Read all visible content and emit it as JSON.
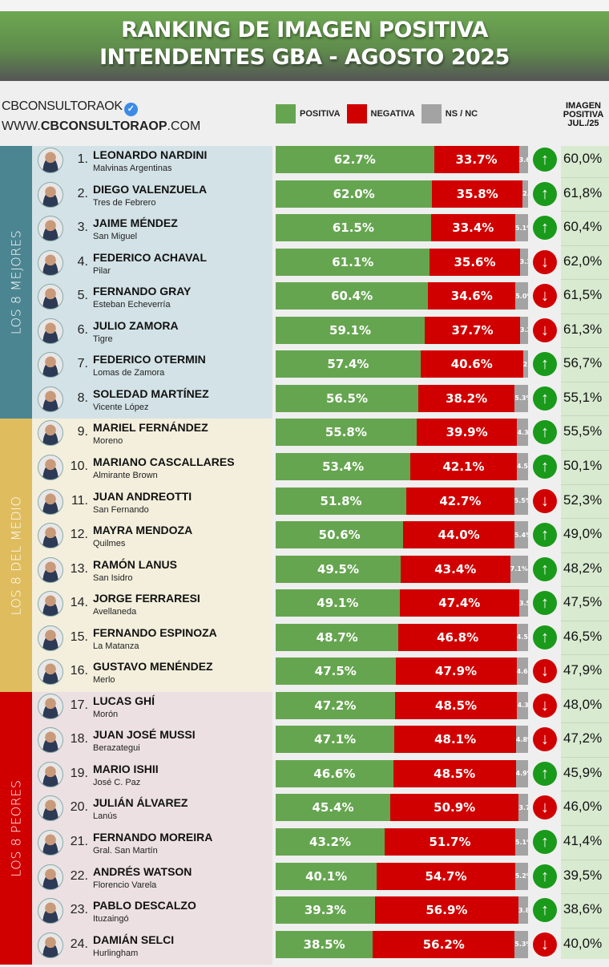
{
  "header": {
    "title_line1": "RANKING DE IMAGEN POSITIVA",
    "title_line2": "INTENDENTES GBA - AGOSTO 2025"
  },
  "brand": {
    "handle": "CBCONSULTORAOK",
    "verified_icon": "verified-badge-icon",
    "url_prefix": "WWW.",
    "url_bold": "CBCONSULTORAOP",
    "url_suffix": ".COM"
  },
  "legend": {
    "positiva": {
      "label": "POSITIVA",
      "color": "#66a550"
    },
    "negativa": {
      "label": "NEGATIVA",
      "color": "#d10000"
    },
    "nsnc": {
      "label": "NS / NC",
      "color": "#a3a3a3"
    }
  },
  "jul_header": {
    "line1": "IMAGEN",
    "line2": "POSITIVA",
    "line3": "JUL./25"
  },
  "groups": [
    {
      "label": "LOS 8 MEJORES",
      "color": "#4b8591",
      "bg": "#d3e2e6"
    },
    {
      "label": "LOS 8 DEL MEDIO",
      "color": "#dfbd5f",
      "bg": "#f3efdc"
    },
    {
      "label": "LOS 8 PEORES",
      "color": "#d10000",
      "bg": "#ece0e2"
    }
  ],
  "trend_colors": {
    "up": "#1a9a1a",
    "down": "#d10000"
  },
  "chart_data": {
    "type": "bar",
    "orientation": "horizontal-stacked",
    "title": "RANKING DE IMAGEN POSITIVA INTENDENTES GBA - AGOSTO 2025",
    "xlabel": "",
    "ylabel": "",
    "legend": [
      "POSITIVA",
      "NEGATIVA",
      "NS / NC"
    ],
    "legend_position": "top",
    "extra_column": "IMAGEN POSITIVA JUL./25",
    "categories": [
      "LEONARDO NARDINI",
      "DIEGO VALENZUELA",
      "JAIME MÉNDEZ",
      "FEDERICO ACHAVAL",
      "FERNANDO GRAY",
      "JULIO ZAMORA",
      "FEDERICO OTERMIN",
      "SOLEDAD MARTÍNEZ",
      "MARIEL FERNÁNDEZ",
      "MARIANO CASCALLARES",
      "JUAN ANDREOTTI",
      "MAYRA MENDOZA",
      "RAMÓN LANUS",
      "JORGE FERRARESI",
      "FERNANDO ESPINOZA",
      "GUSTAVO MENÉNDEZ",
      "LUCAS GHÍ",
      "JUAN JOSÉ MUSSI",
      "MARIO ISHII",
      "JULIÁN ÁLVAREZ",
      "FERNANDO MOREIRA",
      "ANDRÉS WATSON",
      "PABLO DESCALZO",
      "DAMIÁN SELCI"
    ],
    "series": [
      {
        "name": "POSITIVA",
        "values": [
          62.7,
          62.0,
          61.5,
          61.1,
          60.4,
          59.1,
          57.4,
          56.5,
          55.8,
          53.4,
          51.8,
          50.6,
          49.5,
          49.1,
          48.7,
          47.5,
          47.2,
          47.1,
          46.6,
          45.4,
          43.2,
          40.1,
          39.3,
          38.5
        ]
      },
      {
        "name": "NEGATIVA",
        "values": [
          33.7,
          35.8,
          33.4,
          35.6,
          34.6,
          37.7,
          40.6,
          38.2,
          39.9,
          42.1,
          42.7,
          44.0,
          43.4,
          47.4,
          46.8,
          47.9,
          48.5,
          48.1,
          48.5,
          50.9,
          51.7,
          54.7,
          56.9,
          56.2
        ]
      },
      {
        "name": "NS / NC",
        "values": [
          3.6,
          2.2,
          5.1,
          3.3,
          5.0,
          3.2,
          2.0,
          5.3,
          4.3,
          4.5,
          5.5,
          5.4,
          7.1,
          3.5,
          4.5,
          4.6,
          4.3,
          4.8,
          4.9,
          3.7,
          5.1,
          5.2,
          3.8,
          5.3
        ]
      },
      {
        "name": "IMAGEN POSITIVA JUL./25",
        "values": [
          60.0,
          61.8,
          60.4,
          62.0,
          61.5,
          61.3,
          56.7,
          55.1,
          55.5,
          50.1,
          52.3,
          49.0,
          48.2,
          47.5,
          46.5,
          47.9,
          48.0,
          47.2,
          45.9,
          46.0,
          41.4,
          39.5,
          38.6,
          40.0
        ]
      }
    ],
    "xlim": [
      0,
      100
    ]
  },
  "rows": [
    {
      "rank": "1.",
      "name": "LEONARDO NARDINI",
      "muni": "Malvinas Argentinas",
      "pos": "62.7%",
      "neg": "33.7%",
      "ns": "3.6%",
      "p": 62.7,
      "n": 33.7,
      "s": 3.6,
      "trend": "up",
      "jul": "60,0%"
    },
    {
      "rank": "2.",
      "name": "DIEGO VALENZUELA",
      "muni": "Tres de Febrero",
      "pos": "62.0%",
      "neg": "35.8%",
      "ns": "2.2%",
      "p": 62.0,
      "n": 35.8,
      "s": 2.2,
      "trend": "up",
      "jul": "61,8%"
    },
    {
      "rank": "3.",
      "name": "JAIME MÉNDEZ",
      "muni": "San Miguel",
      "pos": "61.5%",
      "neg": "33.4%",
      "ns": "5.1%",
      "p": 61.5,
      "n": 33.4,
      "s": 5.1,
      "trend": "up",
      "jul": "60,4%"
    },
    {
      "rank": "4.",
      "name": "FEDERICO ACHAVAL",
      "muni": "Pilar",
      "pos": "61.1%",
      "neg": "35.6%",
      "ns": "3.3%",
      "p": 61.1,
      "n": 35.6,
      "s": 3.3,
      "trend": "down",
      "jul": "62,0%"
    },
    {
      "rank": "5.",
      "name": "FERNANDO GRAY",
      "muni": "Esteban Echeverría",
      "pos": "60.4%",
      "neg": "34.6%",
      "ns": "5.0%",
      "p": 60.4,
      "n": 34.6,
      "s": 5.0,
      "trend": "down",
      "jul": "61,5%"
    },
    {
      "rank": "6.",
      "name": "JULIO ZAMORA",
      "muni": "Tigre",
      "pos": "59.1%",
      "neg": "37.7%",
      "ns": "3.2%",
      "p": 59.1,
      "n": 37.7,
      "s": 3.2,
      "trend": "down",
      "jul": "61,3%"
    },
    {
      "rank": "7.",
      "name": "FEDERICO OTERMIN",
      "muni": "Lomas de Zamora",
      "pos": "57.4%",
      "neg": "40.6%",
      "ns": "2.0%",
      "p": 57.4,
      "n": 40.6,
      "s": 2.0,
      "trend": "up",
      "jul": "56,7%"
    },
    {
      "rank": "8.",
      "name": "SOLEDAD MARTÍNEZ",
      "muni": "Vicente López",
      "pos": "56.5%",
      "neg": "38.2%",
      "ns": "5.3%",
      "p": 56.5,
      "n": 38.2,
      "s": 5.3,
      "trend": "up",
      "jul": "55,1%"
    },
    {
      "rank": "9.",
      "name": "MARIEL FERNÁNDEZ",
      "muni": "Moreno",
      "pos": "55.8%",
      "neg": "39.9%",
      "ns": "4.3%",
      "p": 55.8,
      "n": 39.9,
      "s": 4.3,
      "trend": "up",
      "jul": "55,5%"
    },
    {
      "rank": "10.",
      "name": "MARIANO CASCALLARES",
      "muni": "Almirante Brown",
      "pos": "53.4%",
      "neg": "42.1%",
      "ns": "4.5%",
      "p": 53.4,
      "n": 42.1,
      "s": 4.5,
      "trend": "up",
      "jul": "50,1%"
    },
    {
      "rank": "11.",
      "name": "JUAN ANDREOTTI",
      "muni": "San Fernando",
      "pos": "51.8%",
      "neg": "42.7%",
      "ns": "5.5%",
      "p": 51.8,
      "n": 42.7,
      "s": 5.5,
      "trend": "down",
      "jul": "52,3%"
    },
    {
      "rank": "12.",
      "name": "MAYRA MENDOZA",
      "muni": "Quilmes",
      "pos": "50.6%",
      "neg": "44.0%",
      "ns": "5.4%",
      "p": 50.6,
      "n": 44.0,
      "s": 5.4,
      "trend": "up",
      "jul": "49,0%"
    },
    {
      "rank": "13.",
      "name": "RAMÓN LANUS",
      "muni": "San Isidro",
      "pos": "49.5%",
      "neg": "43.4%",
      "ns": "7.1%",
      "p": 49.5,
      "n": 43.4,
      "s": 7.1,
      "trend": "up",
      "jul": "48,2%"
    },
    {
      "rank": "14.",
      "name": "JORGE FERRARESI",
      "muni": "Avellaneda",
      "pos": "49.1%",
      "neg": "47.4%",
      "ns": "3.5%",
      "p": 49.1,
      "n": 47.4,
      "s": 3.5,
      "trend": "up",
      "jul": "47,5%"
    },
    {
      "rank": "15.",
      "name": "FERNANDO ESPINOZA",
      "muni": "La Matanza",
      "pos": "48.7%",
      "neg": "46.8%",
      "ns": "4.5%",
      "p": 48.7,
      "n": 46.8,
      "s": 4.5,
      "trend": "up",
      "jul": "46,5%"
    },
    {
      "rank": "16.",
      "name": "GUSTAVO MENÉNDEZ",
      "muni": "Merlo",
      "pos": "47.5%",
      "neg": "47.9%",
      "ns": "4.6%",
      "p": 47.5,
      "n": 47.9,
      "s": 4.6,
      "trend": "down",
      "jul": "47,9%"
    },
    {
      "rank": "17.",
      "name": "LUCAS GHÍ",
      "muni": "Morón",
      "pos": "47.2%",
      "neg": "48.5%",
      "ns": "4.3%",
      "p": 47.2,
      "n": 48.5,
      "s": 4.3,
      "trend": "down",
      "jul": "48,0%"
    },
    {
      "rank": "18.",
      "name": "JUAN JOSÉ MUSSI",
      "muni": "Berazategui",
      "pos": "47.1%",
      "neg": "48.1%",
      "ns": "4.8%",
      "p": 47.1,
      "n": 48.1,
      "s": 4.8,
      "trend": "down",
      "jul": "47,2%"
    },
    {
      "rank": "19.",
      "name": "MARIO ISHII",
      "muni": "José C. Paz",
      "pos": "46.6%",
      "neg": "48.5%",
      "ns": "4.9%",
      "p": 46.6,
      "n": 48.5,
      "s": 4.9,
      "trend": "up",
      "jul": "45,9%"
    },
    {
      "rank": "20.",
      "name": "JULIÁN ÁLVAREZ",
      "muni": "Lanús",
      "pos": "45.4%",
      "neg": "50.9%",
      "ns": "3.7%",
      "p": 45.4,
      "n": 50.9,
      "s": 3.7,
      "trend": "down",
      "jul": "46,0%"
    },
    {
      "rank": "21.",
      "name": "FERNANDO MOREIRA",
      "muni": "Gral. San Martín",
      "pos": "43.2%",
      "neg": "51.7%",
      "ns": "5.1%",
      "p": 43.2,
      "n": 51.7,
      "s": 5.1,
      "trend": "up",
      "jul": "41,4%"
    },
    {
      "rank": "22.",
      "name": "ANDRÉS WATSON",
      "muni": "Florencio Varela",
      "pos": "40.1%",
      "neg": "54.7%",
      "ns": "5.2%",
      "p": 40.1,
      "n": 54.7,
      "s": 5.2,
      "trend": "up",
      "jul": "39,5%"
    },
    {
      "rank": "23.",
      "name": "PABLO DESCALZO",
      "muni": "Ituzaingó",
      "pos": "39.3%",
      "neg": "56.9%",
      "ns": "3.8%",
      "p": 39.3,
      "n": 56.9,
      "s": 3.8,
      "trend": "up",
      "jul": "38,6%"
    },
    {
      "rank": "24.",
      "name": "DAMIÁN SELCI",
      "muni": "Hurlingham",
      "pos": "38.5%",
      "neg": "56.2%",
      "ns": "5.3%",
      "p": 38.5,
      "n": 56.2,
      "s": 5.3,
      "trend": "down",
      "jul": "40,0%"
    }
  ]
}
